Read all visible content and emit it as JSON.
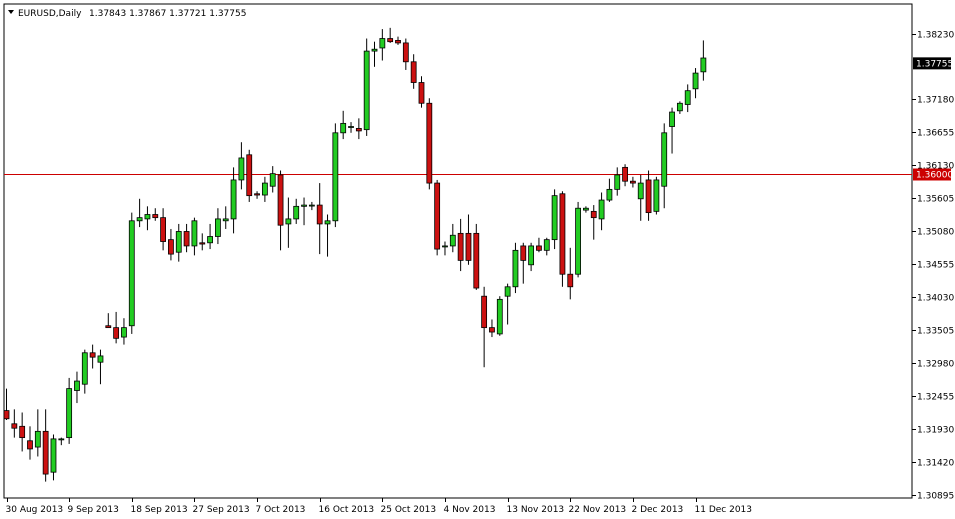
{
  "header": {
    "symbol": "EURUSD,Daily",
    "ohlc": "1.37843 1.37867 1.37721 1.37755"
  },
  "colors": {
    "bull": "#22cc22",
    "bear": "#cc1111",
    "wick": "#000000",
    "level_line": "#cc0000",
    "level_label_bg": "#cc0000",
    "price_label_bg": "#000000"
  },
  "chart_data": {
    "type": "candlestick",
    "y_ticks": [
      "1.38230",
      "1.37180",
      "1.36655",
      "1.36130",
      "1.35605",
      "1.35080",
      "1.34555",
      "1.34030",
      "1.33505",
      "1.32980",
      "1.32455",
      "1.31930",
      "1.31420",
      "1.30895"
    ],
    "x_ticks": [
      "30 Aug 2013",
      "9 Sep 2013",
      "18 Sep 2013",
      "27 Sep 2013",
      "7 Oct 2013",
      "16 Oct 2013",
      "25 Oct 2013",
      "4 Nov 2013",
      "13 Nov 2013",
      "22 Nov 2013",
      "2 Dec 2013",
      "11 Dec 2013"
    ],
    "ylim": [
      1.308,
      1.385
    ],
    "current_price": "1.37755",
    "level_price": "1.36000",
    "candles": [
      {
        "o": 1.3223,
        "h": 1.3258,
        "l": 1.3208,
        "c": 1.321
      },
      {
        "o": 1.3202,
        "h": 1.3225,
        "l": 1.318,
        "c": 1.3195
      },
      {
        "o": 1.3198,
        "h": 1.322,
        "l": 1.3158,
        "c": 1.318
      },
      {
        "o": 1.3175,
        "h": 1.3198,
        "l": 1.3145,
        "c": 1.3162
      },
      {
        "o": 1.3165,
        "h": 1.3225,
        "l": 1.315,
        "c": 1.319
      },
      {
        "o": 1.319,
        "h": 1.3225,
        "l": 1.311,
        "c": 1.3122
      },
      {
        "o": 1.3125,
        "h": 1.3185,
        "l": 1.3112,
        "c": 1.3178
      },
      {
        "o": 1.3177,
        "h": 1.318,
        "l": 1.3168,
        "c": 1.3178
      },
      {
        "o": 1.318,
        "h": 1.3275,
        "l": 1.317,
        "c": 1.3258
      },
      {
        "o": 1.3255,
        "h": 1.3285,
        "l": 1.3235,
        "c": 1.327
      },
      {
        "o": 1.3265,
        "h": 1.332,
        "l": 1.325,
        "c": 1.3315
      },
      {
        "o": 1.3315,
        "h": 1.3328,
        "l": 1.329,
        "c": 1.3308
      },
      {
        "o": 1.33,
        "h": 1.332,
        "l": 1.3265,
        "c": 1.331
      },
      {
        "o": 1.3358,
        "h": 1.3378,
        "l": 1.3355,
        "c": 1.3355
      },
      {
        "o": 1.3355,
        "h": 1.338,
        "l": 1.333,
        "c": 1.3338
      },
      {
        "o": 1.334,
        "h": 1.337,
        "l": 1.3328,
        "c": 1.3355
      },
      {
        "o": 1.3358,
        "h": 1.3538,
        "l": 1.3345,
        "c": 1.3525
      },
      {
        "o": 1.3525,
        "h": 1.356,
        "l": 1.3515,
        "c": 1.353
      },
      {
        "o": 1.3528,
        "h": 1.3548,
        "l": 1.351,
        "c": 1.3535
      },
      {
        "o": 1.3535,
        "h": 1.3545,
        "l": 1.3525,
        "c": 1.353
      },
      {
        "o": 1.353,
        "h": 1.3545,
        "l": 1.3478,
        "c": 1.3492
      },
      {
        "o": 1.3495,
        "h": 1.3512,
        "l": 1.3462,
        "c": 1.3472
      },
      {
        "o": 1.3475,
        "h": 1.352,
        "l": 1.346,
        "c": 1.3508
      },
      {
        "o": 1.3508,
        "h": 1.352,
        "l": 1.3475,
        "c": 1.3485
      },
      {
        "o": 1.3485,
        "h": 1.353,
        "l": 1.347,
        "c": 1.3525
      },
      {
        "o": 1.349,
        "h": 1.3505,
        "l": 1.3478,
        "c": 1.3488
      },
      {
        "o": 1.349,
        "h": 1.352,
        "l": 1.348,
        "c": 1.35
      },
      {
        "o": 1.35,
        "h": 1.3545,
        "l": 1.3488,
        "c": 1.3528
      },
      {
        "o": 1.3525,
        "h": 1.3548,
        "l": 1.3512,
        "c": 1.3528
      },
      {
        "o": 1.3528,
        "h": 1.361,
        "l": 1.3505,
        "c": 1.359
      },
      {
        "o": 1.359,
        "h": 1.365,
        "l": 1.3575,
        "c": 1.3625
      },
      {
        "o": 1.363,
        "h": 1.3638,
        "l": 1.3555,
        "c": 1.3565
      },
      {
        "o": 1.3568,
        "h": 1.3572,
        "l": 1.356,
        "c": 1.3566
      },
      {
        "o": 1.3566,
        "h": 1.3595,
        "l": 1.3555,
        "c": 1.3585
      },
      {
        "o": 1.358,
        "h": 1.3612,
        "l": 1.357,
        "c": 1.36
      },
      {
        "o": 1.3598,
        "h": 1.3605,
        "l": 1.3478,
        "c": 1.3518
      },
      {
        "o": 1.352,
        "h": 1.3562,
        "l": 1.3482,
        "c": 1.3528
      },
      {
        "o": 1.3528,
        "h": 1.356,
        "l": 1.352,
        "c": 1.3548
      },
      {
        "o": 1.3548,
        "h": 1.3562,
        "l": 1.3518,
        "c": 1.355
      },
      {
        "o": 1.355,
        "h": 1.3555,
        "l": 1.3542,
        "c": 1.355
      },
      {
        "o": 1.355,
        "h": 1.3585,
        "l": 1.3472,
        "c": 1.352
      },
      {
        "o": 1.352,
        "h": 1.3535,
        "l": 1.3468,
        "c": 1.3525
      },
      {
        "o": 1.3525,
        "h": 1.368,
        "l": 1.3515,
        "c": 1.3665
      },
      {
        "o": 1.3665,
        "h": 1.37,
        "l": 1.3655,
        "c": 1.368
      },
      {
        "o": 1.3675,
        "h": 1.3682,
        "l": 1.3665,
        "c": 1.3675
      },
      {
        "o": 1.3672,
        "h": 1.3688,
        "l": 1.3655,
        "c": 1.3668
      },
      {
        "o": 1.367,
        "h": 1.3815,
        "l": 1.366,
        "c": 1.3795
      },
      {
        "o": 1.3795,
        "h": 1.381,
        "l": 1.377,
        "c": 1.3798
      },
      {
        "o": 1.38,
        "h": 1.383,
        "l": 1.378,
        "c": 1.3815
      },
      {
        "o": 1.3815,
        "h": 1.3832,
        "l": 1.3808,
        "c": 1.381
      },
      {
        "o": 1.3812,
        "h": 1.3818,
        "l": 1.3805,
        "c": 1.3808
      },
      {
        "o": 1.3808,
        "h": 1.3815,
        "l": 1.3765,
        "c": 1.3778
      },
      {
        "o": 1.3778,
        "h": 1.379,
        "l": 1.3735,
        "c": 1.3745
      },
      {
        "o": 1.3745,
        "h": 1.3755,
        "l": 1.3705,
        "c": 1.3712
      },
      {
        "o": 1.3712,
        "h": 1.372,
        "l": 1.3575,
        "c": 1.3585
      },
      {
        "o": 1.3585,
        "h": 1.359,
        "l": 1.347,
        "c": 1.348
      },
      {
        "o": 1.3485,
        "h": 1.3492,
        "l": 1.347,
        "c": 1.3485
      },
      {
        "o": 1.3485,
        "h": 1.352,
        "l": 1.3475,
        "c": 1.3502
      },
      {
        "o": 1.3505,
        "h": 1.3528,
        "l": 1.3445,
        "c": 1.3462
      },
      {
        "o": 1.3505,
        "h": 1.3535,
        "l": 1.3455,
        "c": 1.3462
      },
      {
        "o": 1.3505,
        "h": 1.352,
        "l": 1.3415,
        "c": 1.3418
      },
      {
        "o": 1.3405,
        "h": 1.342,
        "l": 1.3292,
        "c": 1.3355
      },
      {
        "o": 1.3355,
        "h": 1.3368,
        "l": 1.334,
        "c": 1.3348
      },
      {
        "o": 1.3345,
        "h": 1.3405,
        "l": 1.3342,
        "c": 1.34
      },
      {
        "o": 1.3405,
        "h": 1.3425,
        "l": 1.336,
        "c": 1.342
      },
      {
        "o": 1.342,
        "h": 1.349,
        "l": 1.341,
        "c": 1.3478
      },
      {
        "o": 1.3485,
        "h": 1.349,
        "l": 1.3425,
        "c": 1.3462
      },
      {
        "o": 1.3455,
        "h": 1.349,
        "l": 1.3445,
        "c": 1.3485
      },
      {
        "o": 1.3485,
        "h": 1.3498,
        "l": 1.3475,
        "c": 1.3478
      },
      {
        "o": 1.3478,
        "h": 1.3498,
        "l": 1.347,
        "c": 1.3495
      },
      {
        "o": 1.3495,
        "h": 1.3575,
        "l": 1.348,
        "c": 1.3565
      },
      {
        "o": 1.3568,
        "h": 1.3572,
        "l": 1.342,
        "c": 1.344
      },
      {
        "o": 1.344,
        "h": 1.3482,
        "l": 1.34,
        "c": 1.342
      },
      {
        "o": 1.344,
        "h": 1.3555,
        "l": 1.3435,
        "c": 1.3545
      },
      {
        "o": 1.3542,
        "h": 1.3548,
        "l": 1.3538,
        "c": 1.3545
      },
      {
        "o": 1.354,
        "h": 1.355,
        "l": 1.3495,
        "c": 1.353
      },
      {
        "o": 1.3528,
        "h": 1.357,
        "l": 1.351,
        "c": 1.3558
      },
      {
        "o": 1.3558,
        "h": 1.3592,
        "l": 1.3555,
        "c": 1.3575
      },
      {
        "o": 1.3575,
        "h": 1.361,
        "l": 1.3565,
        "c": 1.3598
      },
      {
        "o": 1.361,
        "h": 1.3615,
        "l": 1.358,
        "c": 1.3588
      },
      {
        "o": 1.3588,
        "h": 1.3595,
        "l": 1.3578,
        "c": 1.3585
      },
      {
        "o": 1.356,
        "h": 1.3598,
        "l": 1.3525,
        "c": 1.3585
      },
      {
        "o": 1.359,
        "h": 1.3605,
        "l": 1.3525,
        "c": 1.3538
      },
      {
        "o": 1.354,
        "h": 1.3595,
        "l": 1.3535,
        "c": 1.359
      },
      {
        "o": 1.358,
        "h": 1.368,
        "l": 1.3545,
        "c": 1.3665
      },
      {
        "o": 1.3675,
        "h": 1.3705,
        "l": 1.3632,
        "c": 1.3698
      },
      {
        "o": 1.37,
        "h": 1.3715,
        "l": 1.3695,
        "c": 1.3712
      },
      {
        "o": 1.371,
        "h": 1.3742,
        "l": 1.3698,
        "c": 1.3732
      },
      {
        "o": 1.3735,
        "h": 1.3768,
        "l": 1.372,
        "c": 1.376
      },
      {
        "o": 1.3762,
        "h": 1.3812,
        "l": 1.3748,
        "c": 1.3784
      }
    ]
  }
}
